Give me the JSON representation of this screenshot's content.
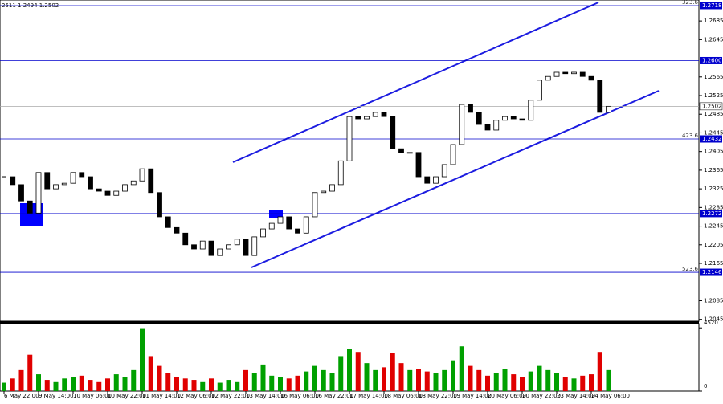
{
  "header": "2511 1.2494 1.2502",
  "chart_data": {
    "type": "candlestick",
    "close": [
      1.2351,
      1.2334,
      1.2299,
      1.2273,
      1.236,
      1.2325,
      1.2334,
      1.2337,
      1.236,
      1.2351,
      1.2325,
      1.232,
      1.2311,
      1.232,
      1.2334,
      1.2342,
      1.2368,
      1.2317,
      1.2265,
      1.2242,
      1.223,
      1.2205,
      1.2196,
      1.2213,
      1.2182,
      1.2196,
      1.2205,
      1.2217,
      1.2182,
      1.2222,
      1.2239,
      1.2251,
      1.2265,
      1.2239,
      1.223,
      1.2265,
      1.2317,
      1.232,
      1.2334,
      1.2385,
      1.248,
      1.2475,
      1.248,
      1.2489,
      1.248,
      1.2411,
      1.2403,
      1.2403,
      1.2351,
      1.2337,
      1.2351,
      1.2377,
      1.242,
      1.2506,
      1.2489,
      1.2463,
      1.2451,
      1.2472,
      1.248,
      1.2475,
      1.2472,
      1.2515,
      1.2558,
      1.2566,
      1.2575,
      1.2572,
      1.2575,
      1.2566,
      1.2558,
      1.2489,
      1.2502
    ],
    "volume": [
      600,
      900,
      1500,
      2600,
      1200,
      800,
      700,
      900,
      1000,
      1100,
      800,
      700,
      900,
      1200,
      1000,
      1500,
      4500,
      2500,
      1800,
      1300,
      1000,
      900,
      800,
      700,
      900,
      600,
      800,
      700,
      1500,
      1300,
      1900,
      1100,
      1000,
      900,
      1100,
      1400,
      1800,
      1500,
      1300,
      2500,
      3000,
      2800,
      2000,
      1500,
      1700,
      2700,
      2000,
      1500,
      1600,
      1400,
      1300,
      1500,
      2200,
      3200,
      1800,
      1500,
      1100,
      1300,
      1600,
      1200,
      1000,
      1400,
      1800,
      1500,
      1300,
      1000,
      900,
      1100,
      1200,
      2800,
      1500
    ],
    "up_color": "#ffffff",
    "down_color": "#000000",
    "volume_up_color": "#00a000",
    "volume_down_color": "#e00000",
    "ylim": [
      1.2041,
      1.273
    ],
    "yticks": [
      1.2685,
      1.2645,
      1.2565,
      1.2525,
      1.2485,
      1.2445,
      1.2405,
      1.2365,
      1.2325,
      1.2285,
      1.2245,
      1.2205,
      1.2165,
      1.2085,
      1.2045
    ],
    "y2lim": [
      0,
      4820
    ],
    "y2ticks": [
      4520,
      0
    ],
    "xticks": [
      {
        "value": 0,
        "label": "6 May 22:00"
      },
      {
        "value": 4,
        "label": "9 May 14:00"
      },
      {
        "value": 8,
        "label": "10 May 06:00"
      },
      {
        "value": 12,
        "label": "10 May 22:00"
      },
      {
        "value": 16,
        "label": "11 May 14:00"
      },
      {
        "value": 20,
        "label": "12 May 06:00"
      },
      {
        "value": 24,
        "label": "12 May 22:00"
      },
      {
        "value": 28,
        "label": "13 May 14:00"
      },
      {
        "value": 32,
        "label": "16 May 06:00"
      },
      {
        "value": 36,
        "label": "16 May 22:00"
      },
      {
        "value": 40,
        "label": "17 May 14:00"
      },
      {
        "value": 44,
        "label": "18 May 06:00"
      },
      {
        "value": 48,
        "label": "18 May 22:00"
      },
      {
        "value": 52,
        "label": "19 May 14:00"
      },
      {
        "value": 56,
        "label": "20 May 06:00"
      },
      {
        "value": 60,
        "label": "20 May 22:00"
      },
      {
        "value": 64,
        "label": "23 May 14:00"
      },
      {
        "value": 68,
        "label": "24 May 06:00"
      }
    ],
    "levels": [
      {
        "value": 1.2718,
        "label": "1.2718",
        "fib": "323.6"
      },
      {
        "value": 1.26,
        "label": "1.2600"
      },
      {
        "value": 1.2432,
        "label": "1.2432",
        "fib": "423.6"
      },
      {
        "value": 1.2272,
        "label": "1.2272"
      },
      {
        "value": 1.2146,
        "label": "1.2146",
        "fib": "523.6"
      }
    ],
    "level_color": "#0000cd",
    "current": {
      "value": 1.2502,
      "label": "1.2502"
    }
  }
}
